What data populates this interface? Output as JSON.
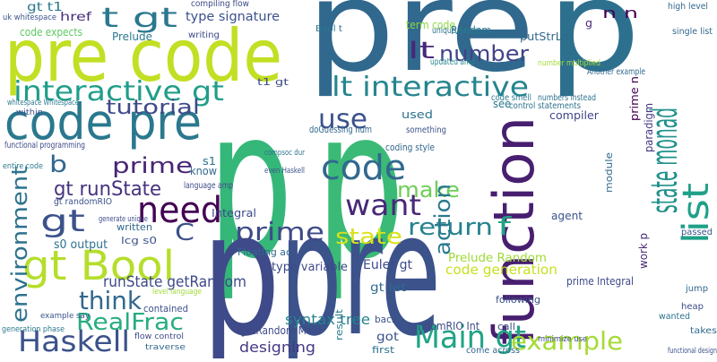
{
  "words": [
    "p",
    "p",
    "pre",
    "p",
    "p",
    "pre",
    "pre code",
    "code pre",
    "function",
    "state monad",
    "list",
    "interactive gt",
    "lt interactive",
    "gt Bool",
    "Haskell",
    "need",
    "code",
    "use",
    "want",
    "Main gt",
    "prime",
    "state",
    "return",
    "make",
    "example",
    "RealFrac",
    "think",
    "gt runState",
    "tutorial",
    "t gt",
    "number",
    "lt",
    "gt",
    "b",
    "prime",
    "environment",
    "C",
    "f",
    "action",
    "runState getRandom",
    "syntax tree",
    "code generation",
    "Prelude Random",
    "designing",
    "type variable",
    "type signature",
    "href",
    "gt t1",
    "code expects",
    "uk whitespace",
    "compiling flow",
    "term code",
    "putStrLn",
    "Random",
    "n n",
    "g",
    "high level",
    "single list",
    "Prelude",
    "writing",
    "Bool t",
    "unique names",
    "updated amp",
    "number multiplied",
    "Another example",
    "t1 gt",
    "code smell",
    "numbers instead",
    "prime n",
    "paradigm",
    "compiler",
    "module",
    "doGuessing num",
    "something",
    "coding style",
    "used",
    "see",
    "control statements",
    "functional programming",
    "within",
    "whitespace Whitespace",
    "entire code",
    "generate unique",
    "gt randomRIO",
    "language amp",
    "s1",
    "know",
    "even Haskell",
    "compsoc dur",
    "Integral",
    "written",
    "lcg s0",
    "s0 output",
    "Floating ac",
    "contained",
    "getRandom Main",
    "Euler gt",
    "gt let",
    "got",
    "first",
    "back",
    "randomRIO Int",
    "result",
    "agent",
    "work p",
    "jump",
    "passed",
    "heap",
    "takes",
    "functional design",
    "wanted",
    "call",
    "minimize use",
    "come across",
    "following",
    "prime Integral",
    "example say",
    "generation phase",
    "flow control",
    "traverse",
    "level language"
  ]
}
